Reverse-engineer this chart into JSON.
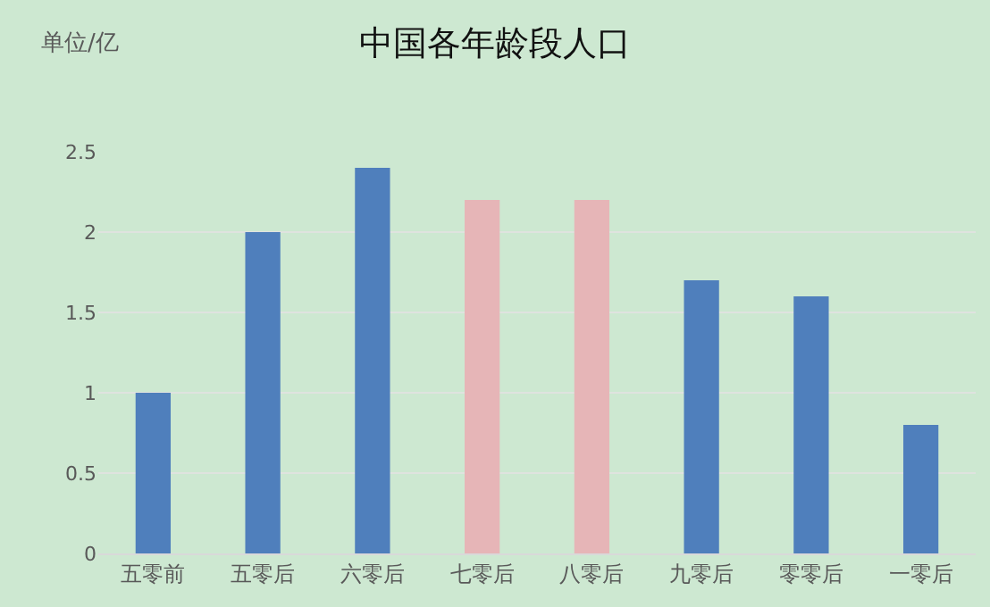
{
  "chart_data": {
    "type": "bar",
    "title": "中国各年龄段人口",
    "ylabel": "单位/亿",
    "categories": [
      "五零前",
      "五零后",
      "六零后",
      "七零后",
      "八零后",
      "九零后",
      "零零后",
      "一零后"
    ],
    "values": [
      1,
      2,
      2.4,
      2.2,
      2.2,
      1.7,
      1.6,
      0.8
    ],
    "colors": [
      "#4f7fbc",
      "#4f7fbc",
      "#4f7fbc",
      "#e6b5b7",
      "#e6b5b7",
      "#4f7fbc",
      "#4f7fbc",
      "#4f7fbc"
    ],
    "ylim": [
      0,
      2.5
    ],
    "yticks": [
      0,
      0.5,
      1,
      1.5,
      2,
      2.5
    ],
    "grid": "y"
  }
}
